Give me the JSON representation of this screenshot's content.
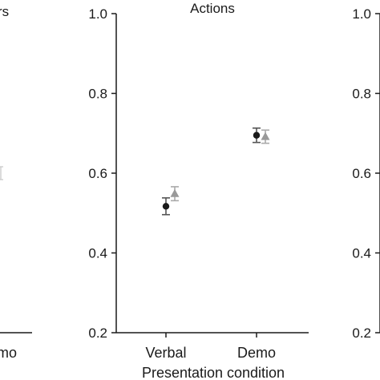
{
  "chart_data": [
    {
      "type": "scatter",
      "title": "Actions",
      "xlabel": "Presentation condition",
      "ylabel": "",
      "categories": [
        "Verbal",
        "Demo"
      ],
      "ylim": [
        0.2,
        1.0
      ],
      "yticks": [
        "0.2",
        "0.4",
        "0.6",
        "0.8",
        "1.0"
      ],
      "series": [
        {
          "marker": "circle",
          "color": "#1a1a1a",
          "errorColor": "#555555",
          "values": [
            0.517,
            0.695
          ],
          "err_low": [
            0.496,
            0.677
          ],
          "err_high": [
            0.538,
            0.713
          ]
        },
        {
          "marker": "triangle",
          "color": "#999999",
          "errorColor": "#aaaaaa",
          "values": [
            0.549,
            0.692
          ],
          "err_low": [
            0.531,
            0.675
          ],
          "err_high": [
            0.566,
            0.708
          ]
        }
      ]
    },
    {
      "type": "scatter",
      "title": "rs",
      "categories": [
        "mo"
      ],
      "series": [
        {
          "marker": "triangle",
          "color": "#cccccc",
          "values": [
            0.6
          ]
        }
      ]
    },
    {
      "type": "scatter",
      "yticks": [
        "1.0",
        "0.8",
        "0.6",
        "0.4",
        "0.2"
      ]
    }
  ]
}
